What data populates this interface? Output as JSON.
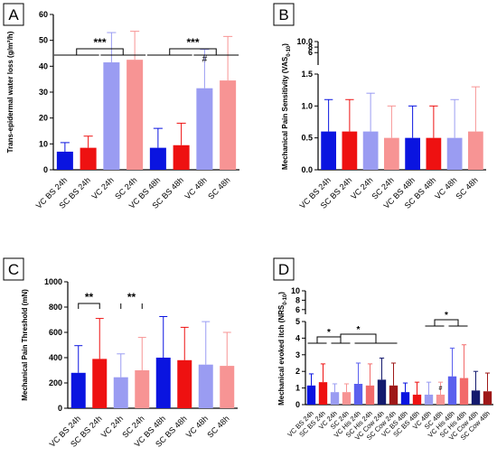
{
  "colors": {
    "vc_bs": "#0a14e0",
    "sc_bs": "#ee1111",
    "vc": "#9a9cf2",
    "sc": "#f79494",
    "vc_his": "#5b60ee",
    "sc_his": "#f26a6a",
    "vc_cow": "#141a6e",
    "sc_cow": "#9e1818",
    "axis": "#000000"
  },
  "chart_data": [
    {
      "panel": "A",
      "type": "bar",
      "ylabel": "Trans-epidermal water loss (g/m²/h)",
      "ylim": [
        0,
        60
      ],
      "yticks": [
        "0",
        "10",
        "20",
        "30",
        "40",
        "50",
        "60"
      ],
      "categories": [
        "VC BS 24h",
        "SC BS 24h",
        "VC 24h",
        "SC 24h",
        "VC BS 48h",
        "SC BS 48h",
        "VC 48h",
        "SC 48h"
      ],
      "colors": [
        "vc_bs",
        "sc_bs",
        "vc",
        "sc",
        "vc_bs",
        "sc_bs",
        "vc",
        "sc"
      ],
      "values": [
        7,
        8.5,
        41.5,
        42.5,
        8.5,
        9.5,
        31.5,
        34.5
      ],
      "errors": [
        3.5,
        4.5,
        11.5,
        11,
        7.5,
        8.5,
        15,
        17
      ],
      "annotations": [
        {
          "text": "***",
          "groups": [
            [
              0,
              1
            ],
            [
              2,
              3
            ]
          ]
        },
        {
          "text": "***",
          "groups": [
            [
              4,
              5
            ],
            [
              6,
              7
            ]
          ]
        },
        {
          "text": "#",
          "bar": 6
        }
      ]
    },
    {
      "panel": "B",
      "type": "bar",
      "ylabel": "Mechanical Pain Sensitivity (VAS0-10)",
      "ylim": [
        0,
        1.5
      ],
      "yticks": [
        "0.0",
        "0.5",
        "1.0",
        "1.5"
      ],
      "ylim_upper": [
        1.5,
        10
      ],
      "yticks_upper": [
        "6",
        "8",
        "10.0"
      ],
      "categories": [
        "VC BS 24h",
        "SC BS 24h",
        "VC 24h",
        "SC 24h",
        "VC BS 48h",
        "SC BS 48h",
        "VC 48h",
        "SC 48h"
      ],
      "colors": [
        "vc_bs",
        "sc_bs",
        "vc",
        "sc",
        "vc_bs",
        "sc_bs",
        "vc",
        "sc"
      ],
      "values": [
        0.6,
        0.6,
        0.6,
        0.5,
        0.5,
        0.5,
        0.5,
        0.6
      ],
      "errors": [
        0.5,
        0.5,
        0.6,
        0.5,
        0.5,
        0.5,
        0.6,
        0.7
      ]
    },
    {
      "panel": "C",
      "type": "bar",
      "ylabel": "Mechanical Pain Threshold (mN)",
      "ylim": [
        0,
        1000
      ],
      "yticks": [
        "0",
        "200",
        "400",
        "600",
        "800",
        "1000"
      ],
      "categories": [
        "VC BS 24h",
        "SC BS 24h",
        "VC 24h",
        "SC 24h",
        "VC BS 48h",
        "SC BS 48h",
        "VC 48h",
        "SC 48h"
      ],
      "colors": [
        "vc_bs",
        "sc_bs",
        "vc",
        "sc",
        "vc_bs",
        "sc_bs",
        "vc",
        "sc"
      ],
      "values": [
        280,
        390,
        245,
        300,
        400,
        380,
        345,
        335
      ],
      "errors": [
        215,
        320,
        185,
        260,
        325,
        260,
        340,
        265
      ],
      "annotations": [
        {
          "text": "**",
          "bars": [
            0,
            1
          ]
        },
        {
          "text": "**",
          "bars": [
            2,
            3
          ]
        }
      ]
    },
    {
      "panel": "D",
      "type": "bar",
      "ylabel": "Mechanical evoked itch (NRS0-10)",
      "ylim": [
        0,
        5
      ],
      "yticks": [
        "0",
        "1",
        "2",
        "3",
        "4",
        "5"
      ],
      "ylim_upper": [
        5,
        10
      ],
      "yticks_upper": [
        "6",
        "8",
        "10"
      ],
      "categories": [
        "VC BS 24h",
        "SC BS 24h",
        "VC 24h",
        "SC 24h",
        "VC His 24h",
        "SC His 24h",
        "VC Cow 24h",
        "SC Cow 24h",
        "VC BS 48h",
        "SC BS 48h",
        "VC 48h",
        "SC 48h",
        "VC His 48h",
        "SC His 48h",
        "VC Cow 48h",
        "SC Cow 48h"
      ],
      "colors": [
        "vc_bs",
        "sc_bs",
        "vc",
        "sc",
        "vc_his",
        "sc_his",
        "vc_cow",
        "sc_cow",
        "vc_bs",
        "sc_bs",
        "vc",
        "sc",
        "vc_his",
        "sc_his",
        "vc_cow",
        "sc_cow"
      ],
      "values": [
        1.15,
        1.35,
        0.75,
        0.75,
        1.25,
        1.15,
        1.5,
        1.15,
        0.75,
        0.6,
        0.6,
        0.6,
        1.7,
        1.6,
        0.85,
        0.8
      ],
      "errors": [
        0.7,
        1.1,
        0.5,
        0.5,
        1.25,
        1.3,
        1.3,
        1.35,
        0.55,
        0.75,
        0.75,
        0.75,
        1.7,
        2.0,
        1.15,
        1.1
      ],
      "annotations": [
        {
          "text": "*",
          "groups": [
            [
              0,
              1
            ],
            [
              2,
              3
            ]
          ]
        },
        {
          "text": "*",
          "groups": [
            [
              2,
              3
            ],
            [
              4,
              7
            ]
          ]
        },
        {
          "text": "*",
          "groups": [
            [
              10,
              11
            ],
            [
              12,
              13
            ]
          ]
        },
        {
          "text": "#",
          "bar": 11
        }
      ]
    }
  ]
}
